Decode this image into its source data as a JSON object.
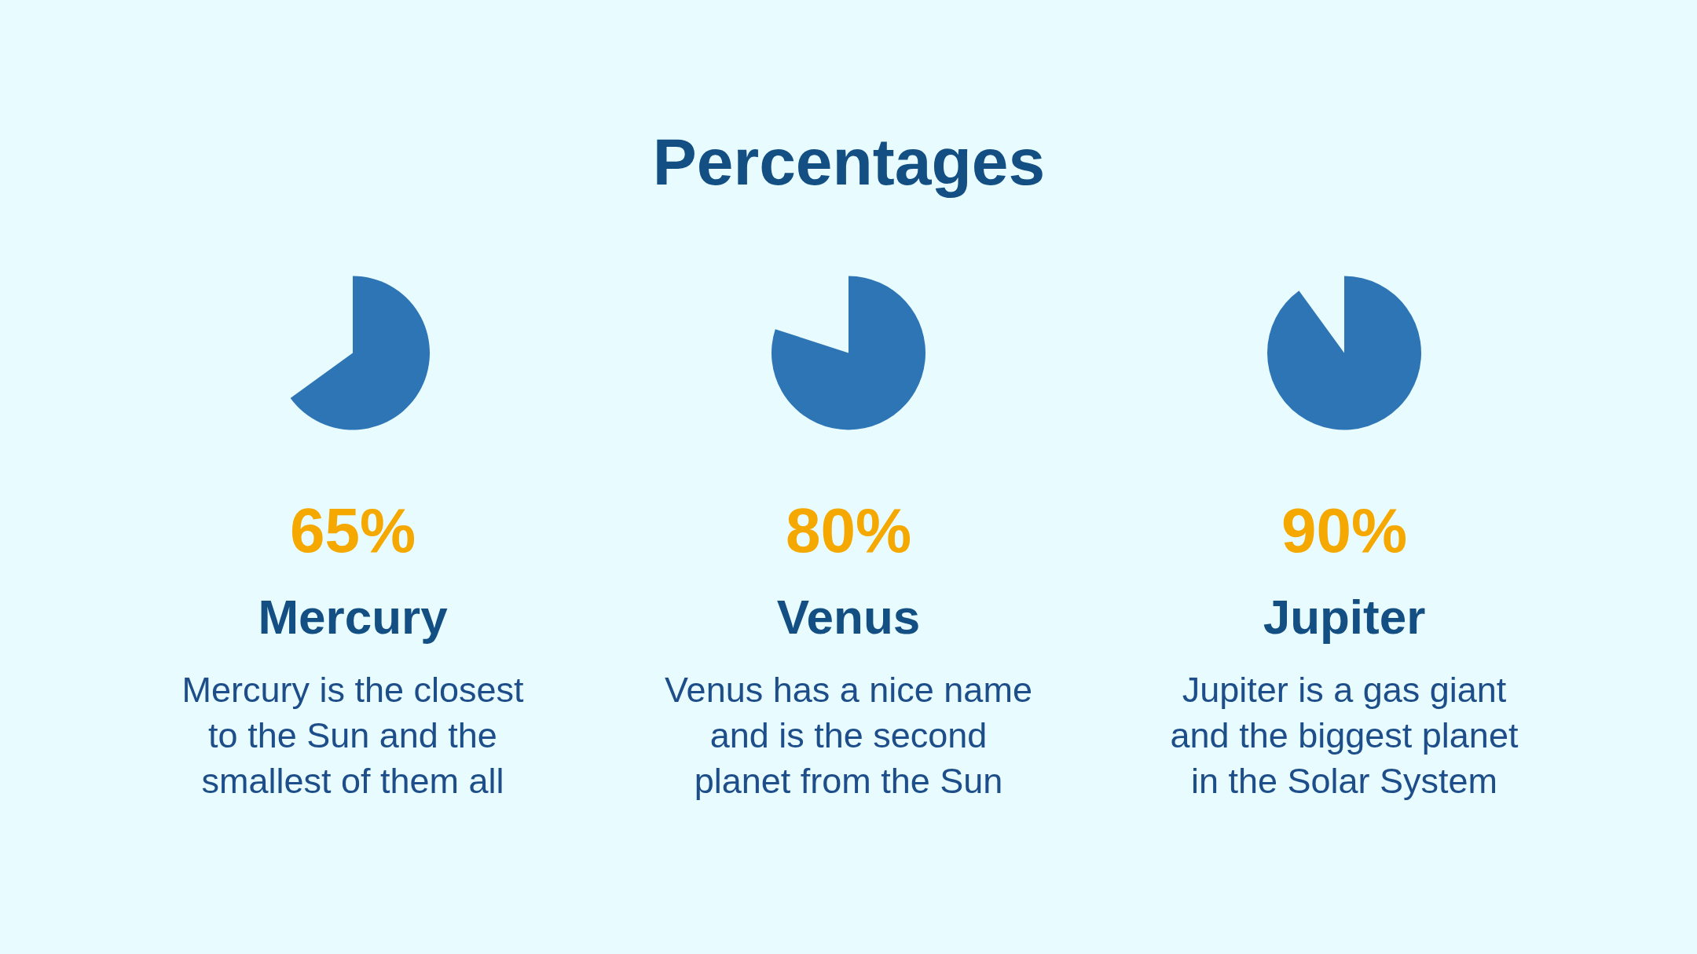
{
  "chart_data": [
    {
      "type": "other",
      "title": "Percentages"
    },
    {
      "type": "pie",
      "title": "Mercury",
      "categories": [
        null,
        null
      ],
      "values": [
        65,
        null
      ],
      "colors": [
        "#2e75b6",
        "#e8fcff"
      ],
      "value_labels": [
        "65%",
        null
      ],
      "annotations": [
        "Mercury is the closest\nto the Sun and the\nsmallest of them all"
      ]
    },
    {
      "type": "pie",
      "title": "Venus",
      "categories": [
        null,
        null
      ],
      "values": [
        80,
        null
      ],
      "colors": [
        "#2e75b6",
        "#e8fcff"
      ],
      "value_labels": [
        "80%",
        null
      ],
      "annotations": [
        "Venus has a nice name\nand is the second\nplanet from the Sun"
      ]
    },
    {
      "type": "pie",
      "title": "Jupiter",
      "categories": [
        null,
        null
      ],
      "values": [
        90,
        null
      ],
      "colors": [
        "#2e75b6",
        "#e8fcff"
      ],
      "value_labels": [
        "90%",
        null
      ],
      "annotations": [
        "Jupiter is a gas giant\nand the biggest planet\nin the Solar System"
      ]
    }
  ]
}
